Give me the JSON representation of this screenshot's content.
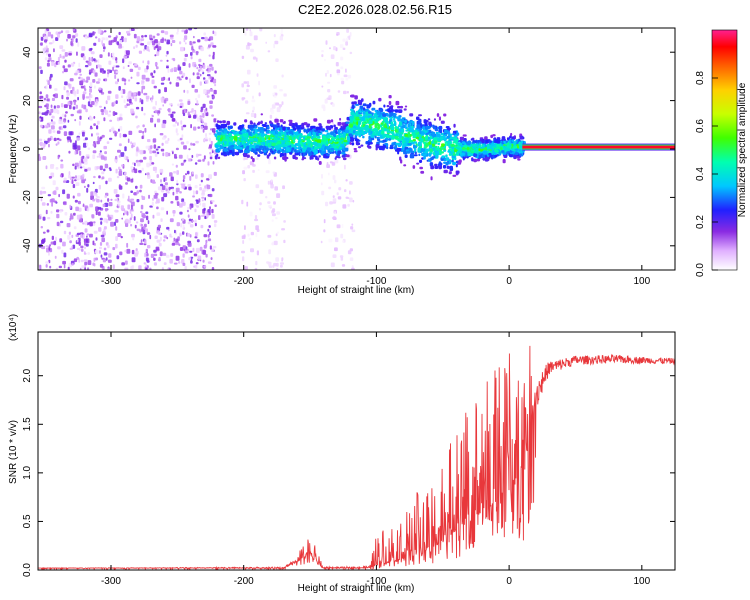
{
  "figure_title": "C2E2.2026.028.02.56.R15",
  "chart_data": [
    {
      "type": "heatmap",
      "xlabel": "Height of straight line (km)",
      "ylabel": "Frequency (Hz)",
      "xlim": [
        -355,
        125
      ],
      "ylim": [
        -50,
        50
      ],
      "xticks": [
        -300,
        -200,
        -100,
        0,
        100
      ],
      "yticks": [
        -40,
        -20,
        0,
        20,
        40
      ],
      "colorbar": {
        "label": "Normalized spectral amplitude",
        "range": [
          0,
          1
        ],
        "ticks": [
          0.0,
          0.2,
          0.4,
          0.6,
          0.8
        ],
        "tick_labels": [
          "0.0",
          "0.2",
          "0.4",
          "0.6",
          "0.8"
        ]
      },
      "features": {
        "carrier_band": {
          "freq_hz": 0.8,
          "x_start": 10,
          "x_end": 125,
          "amplitude": 0.95
        },
        "noise_floor_regions": [
          {
            "x_start": -355,
            "x_end": -222,
            "freq_range": [
              -50,
              50
            ],
            "amplitude": 0.15
          },
          {
            "x_start": -202,
            "x_end": -188,
            "freq_range": [
              -50,
              50
            ],
            "amplitude": 0.06
          },
          {
            "x_start": -184,
            "x_end": -170,
            "freq_range": [
              -50,
              50
            ],
            "amplitude": 0.05
          },
          {
            "x_start": -142,
            "x_end": -118,
            "freq_range": [
              -50,
              50
            ],
            "amplitude": 0.06
          }
        ],
        "signal_band": {
          "x": [
            -222,
            -180,
            -150,
            -125,
            -120,
            -100,
            -80,
            -60,
            -40,
            -20,
            0,
            10
          ],
          "center_freq_hz": [
            4,
            4,
            3,
            3,
            11,
            10,
            6,
            2,
            0,
            0,
            1,
            0.8
          ]
        }
      }
    },
    {
      "type": "line",
      "xlabel": "Height of straight line (km)",
      "ylabel": "SNR (10 * v/v)",
      "multiplier_label": "(x10⁴)",
      "xlim": [
        -355,
        125
      ],
      "ylim": [
        0,
        2.45
      ],
      "xticks": [
        -300,
        -200,
        -100,
        0,
        100
      ],
      "yticks": [
        0.0,
        0.5,
        1.0,
        1.5,
        2.0
      ],
      "ytick_labels": [
        "0.0",
        "0.5",
        "1.0",
        "1.5",
        "2.0"
      ],
      "series_color": "#e8373b",
      "envelope": {
        "x": [
          -355,
          -170,
          -160,
          -150,
          -140,
          -105,
          -100,
          -90,
          -80,
          -70,
          -60,
          -50,
          -40,
          -30,
          -20,
          -10,
          0,
          10,
          14,
          20,
          30,
          50,
          80,
          100,
          125
        ],
        "base": [
          0.02,
          0.02,
          0.08,
          0.15,
          0.02,
          0.02,
          0.05,
          0.08,
          0.12,
          0.15,
          0.2,
          0.3,
          0.4,
          0.5,
          0.6,
          0.7,
          0.8,
          0.9,
          1.2,
          1.8,
          2.08,
          2.16,
          2.17,
          2.16,
          2.15
        ],
        "peak": [
          0.02,
          0.03,
          0.15,
          0.38,
          0.03,
          0.04,
          0.4,
          0.5,
          0.6,
          0.8,
          1.0,
          1.2,
          1.4,
          1.7,
          1.9,
          2.1,
          2.3,
          2.4,
          2.4,
          2.1,
          2.2,
          2.24,
          2.24,
          2.22,
          2.2
        ]
      }
    }
  ]
}
